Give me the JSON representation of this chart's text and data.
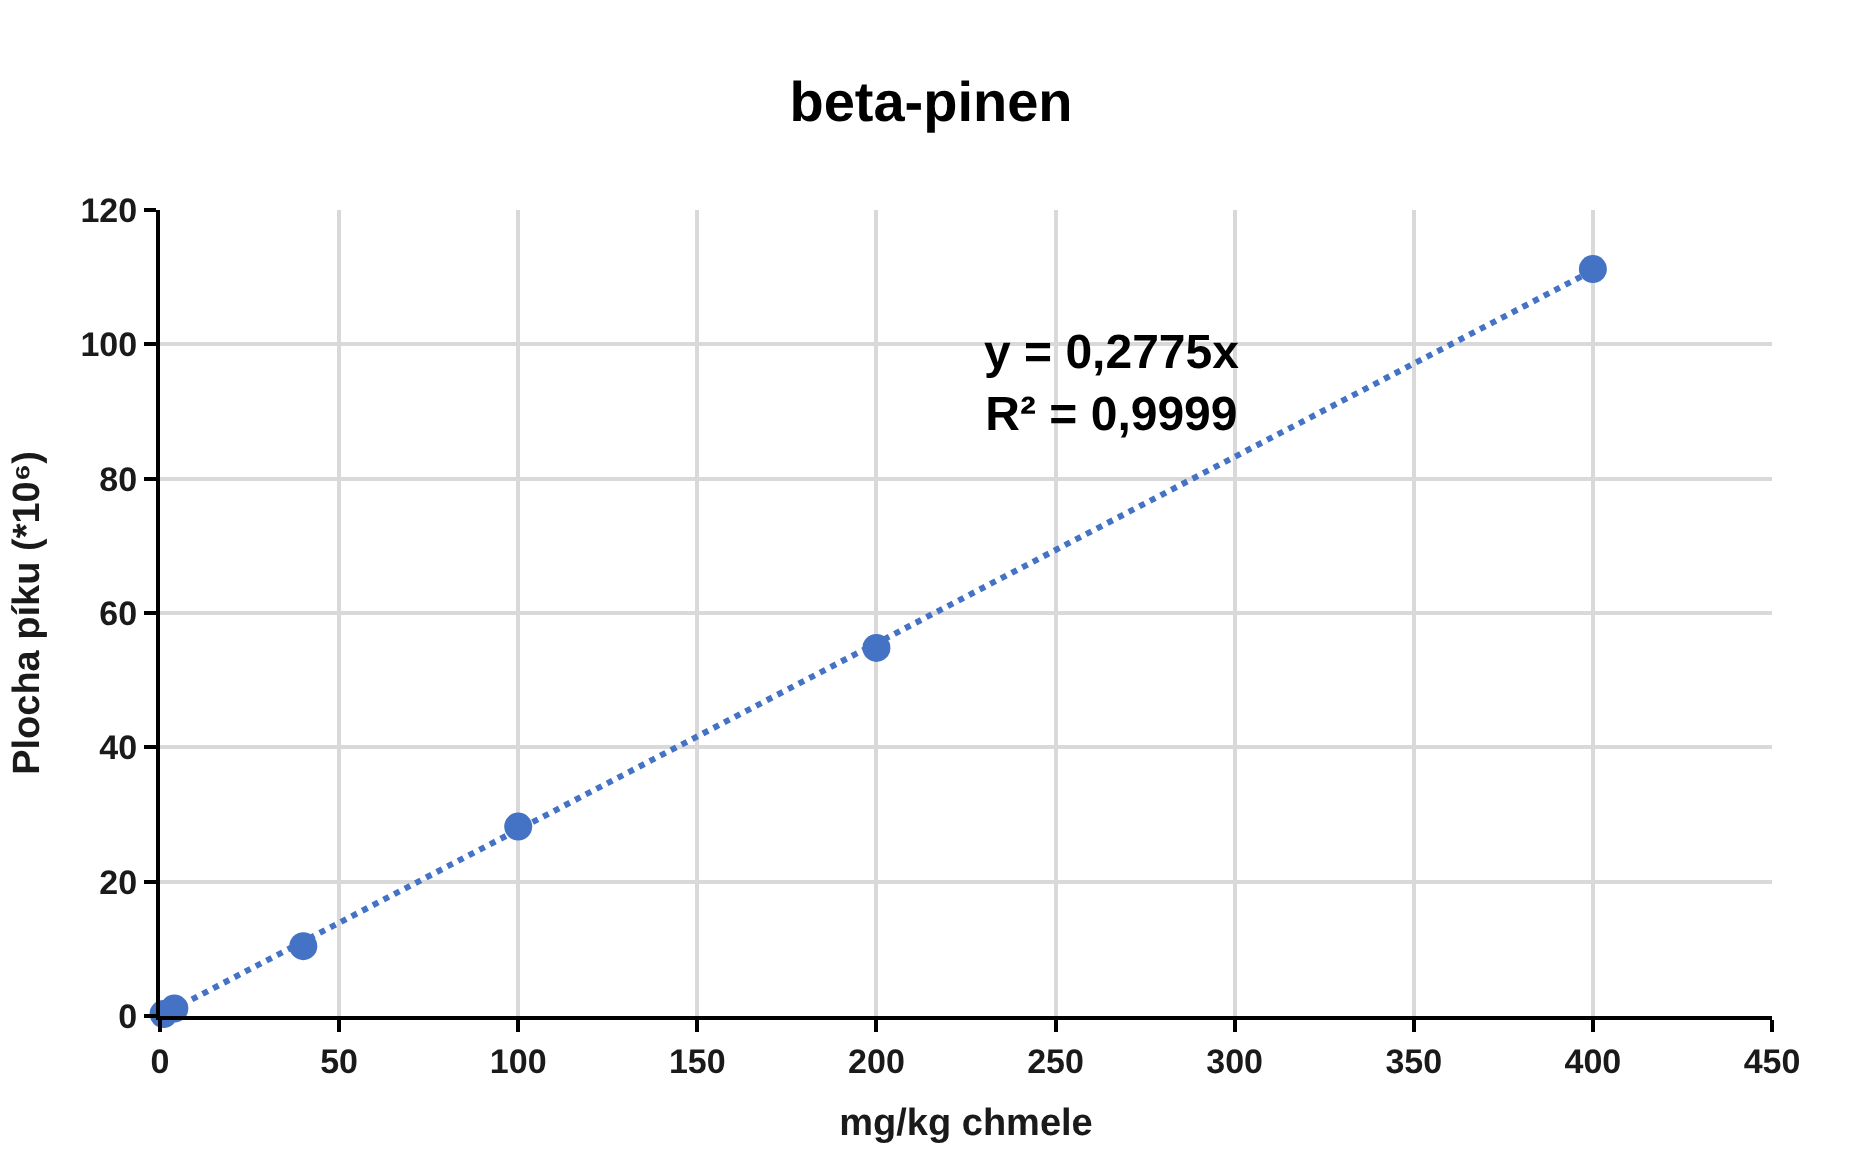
{
  "chart_data": {
    "type": "scatter",
    "title": "beta-pinen",
    "xlabel": "mg/kg chmele",
    "ylabel": "Plocha píku (*10⁶)",
    "x": [
      1,
      4,
      40,
      100,
      200,
      400
    ],
    "series": [
      {
        "color": "#4472c4",
        "values": [
          0.3,
          1.1,
          10.4,
          28.2,
          54.8,
          111.2
        ],
        "marker": "circle"
      },
      {
        "type": "line",
        "color": "#4472c4",
        "x": [
          0,
          400
        ],
        "values": [
          0,
          111
        ],
        "line_style": "dotted",
        "marker": "none"
      }
    ],
    "annotations": [
      "y = 0,2775x\nR² = 0,9999"
    ],
    "xlim": [
      0,
      450
    ],
    "xticks": [
      0,
      50,
      100,
      150,
      200,
      250,
      300,
      350,
      400,
      450
    ],
    "ylim": [
      0,
      120
    ],
    "yticks": [
      0,
      20,
      40,
      60,
      80,
      100,
      120
    ],
    "grid": true
  }
}
